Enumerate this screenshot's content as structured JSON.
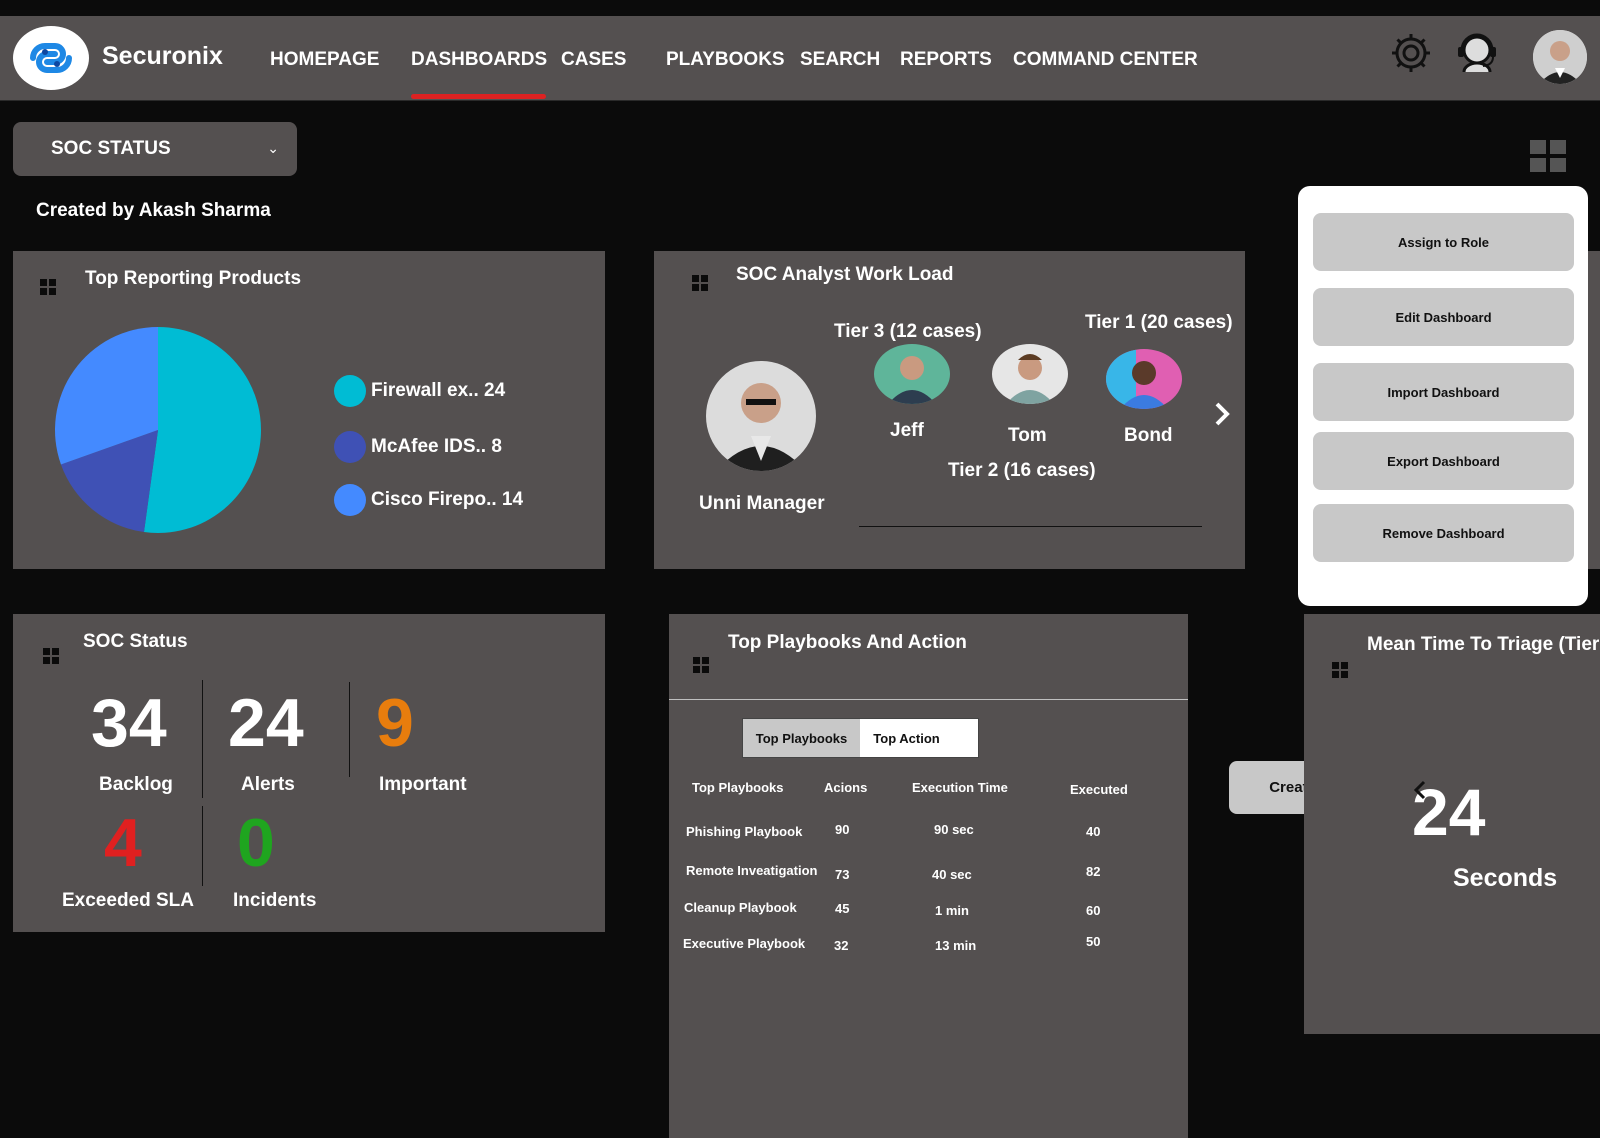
{
  "app": {
    "brand": "Securonix"
  },
  "nav": {
    "items": [
      "HOMEPAGE",
      "DASHBOARDS",
      "CASES",
      "PLAYBOOKS",
      "SEARCH",
      "REPORTS",
      "COMMAND CENTER"
    ],
    "active": "DASHBOARDS"
  },
  "header_icons": [
    "gear-icon",
    "support-agent-icon",
    "user-avatar"
  ],
  "dashboard_select": {
    "value": "SOC STATUS"
  },
  "created_by": "Created by Akash Sharma",
  "top_reporting": {
    "title": "Top Reporting Products",
    "legend": [
      "Firewall ex.. 24",
      "McAfee IDS.. 8",
      "Cisco Firepo.. 14"
    ]
  },
  "chart_data": {
    "type": "pie",
    "categories": [
      "Firewall ex..",
      "McAfee IDS..",
      "Cisco Firepo.."
    ],
    "values": [
      24,
      8,
      14
    ],
    "colors": [
      "#00bcd4",
      "#3f51b5",
      "#448aff"
    ]
  },
  "workload": {
    "title": "SOC Analyst Work Load",
    "manager": "Unni Manager",
    "tier3": "Tier 3 (12 cases)",
    "tier1": "Tier 1 (20 cases)",
    "tier2": "Tier 2 (16 cases)",
    "analysts": [
      "Jeff",
      "Tom",
      "Bond"
    ]
  },
  "menu": {
    "assign": "Assign to Role",
    "edit": "Edit Dashboard",
    "import": "Import Dashboard",
    "export": "Export Dashboard",
    "remove": "Remove Dashboard"
  },
  "soc_status": {
    "title": "SOC Status",
    "backlog": {
      "value": "34",
      "label": "Backlog"
    },
    "alerts": {
      "value": "24",
      "label": "Alerts"
    },
    "important": {
      "value": "9",
      "label": "Important",
      "color": "#e87d0d"
    },
    "exceeded": {
      "value": "4",
      "label": "Exceeded SLA",
      "color": "#e02020"
    },
    "incidents": {
      "value": "0",
      "label": "Incidents",
      "color": "#1fa51f"
    }
  },
  "playbooks": {
    "title": "Top Playbooks And Action",
    "tabs": [
      "Top Playbooks",
      "Top Action"
    ],
    "headers": [
      "Top Playbooks",
      "Acions",
      "Execution Time",
      "Executed"
    ],
    "rows": [
      [
        "Phishing Playbook",
        "90",
        "90 sec",
        "40"
      ],
      [
        "Remote Inveatigation",
        "73",
        "40 sec",
        "82"
      ],
      [
        "Cleanup Playbook",
        "45",
        "1  min",
        "60"
      ],
      [
        "Executive  Playbook",
        "32",
        "13  min",
        "50"
      ]
    ]
  },
  "create_goals": "Create Goals",
  "triage": {
    "title": "Mean Time To Triage (Tier",
    "value": "24",
    "unit": "Seconds"
  }
}
